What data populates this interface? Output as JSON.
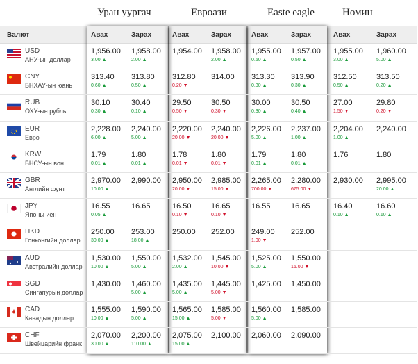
{
  "banks": [
    "Уран уургач",
    "Евроази",
    "Easte eagle",
    "Номин"
  ],
  "header": {
    "currency": "Валют",
    "buy": "Авах",
    "sell": "Зарах"
  },
  "rows": [
    {
      "code": "USD",
      "name": "АНУ-ын доллар",
      "rates": [
        [
          {
            "value": "1,956.00",
            "change": "3.00",
            "dir": "up"
          },
          {
            "value": "1,958.00",
            "change": "2.00",
            "dir": "up"
          }
        ],
        [
          {
            "value": "1,954.00"
          },
          {
            "value": "1,958.00",
            "change": "2.00",
            "dir": "up"
          }
        ],
        [
          {
            "value": "1,955.00",
            "change": "0.50",
            "dir": "up"
          },
          {
            "value": "1,957.00",
            "change": "0.50",
            "dir": "up"
          }
        ],
        [
          {
            "value": "1,955.00",
            "change": "3.00",
            "dir": "up"
          },
          {
            "value": "1,960.00",
            "change": "5.00",
            "dir": "up"
          }
        ]
      ]
    },
    {
      "code": "CNY",
      "name": "БНХАУ-ын юань",
      "rates": [
        [
          {
            "value": "313.40",
            "change": "0.60",
            "dir": "up"
          },
          {
            "value": "313.80",
            "change": "0.50",
            "dir": "up"
          }
        ],
        [
          {
            "value": "312.80",
            "change": "0.20",
            "dir": "down"
          },
          {
            "value": "314.00"
          }
        ],
        [
          {
            "value": "313.30",
            "change": "0.30",
            "dir": "up"
          },
          {
            "value": "313.90",
            "change": "0.30",
            "dir": "up"
          }
        ],
        [
          {
            "value": "312.50",
            "change": "0.50",
            "dir": "up"
          },
          {
            "value": "313.50",
            "change": "0.20",
            "dir": "up"
          }
        ]
      ]
    },
    {
      "code": "RUB",
      "name": "ОХУ-ын рубль",
      "rates": [
        [
          {
            "value": "30.10",
            "change": "0.30",
            "dir": "up"
          },
          {
            "value": "30.40",
            "change": "0.10",
            "dir": "up"
          }
        ],
        [
          {
            "value": "29.50",
            "change": "0.50",
            "dir": "down"
          },
          {
            "value": "30.50",
            "change": "0.30",
            "dir": "down"
          }
        ],
        [
          {
            "value": "30.00",
            "change": "0.30",
            "dir": "up"
          },
          {
            "value": "30.50",
            "change": "0.40",
            "dir": "up"
          }
        ],
        [
          {
            "value": "27.00",
            "change": "1.50",
            "dir": "down"
          },
          {
            "value": "29.80",
            "change": "0.20",
            "dir": "down"
          }
        ]
      ]
    },
    {
      "code": "EUR",
      "name": "Евро",
      "rates": [
        [
          {
            "value": "2,228.00",
            "change": "6.00",
            "dir": "up"
          },
          {
            "value": "2,240.00",
            "change": "5.00",
            "dir": "up"
          }
        ],
        [
          {
            "value": "2,220.00",
            "change": "20.00",
            "dir": "down"
          },
          {
            "value": "2,240.00",
            "change": "20.00",
            "dir": "down"
          }
        ],
        [
          {
            "value": "2,226.00",
            "change": "5.00",
            "dir": "up"
          },
          {
            "value": "2,237.00",
            "change": "1.00",
            "dir": "up"
          }
        ],
        [
          {
            "value": "2,204.00",
            "change": "1.00",
            "dir": "up"
          },
          {
            "value": "2,240.00"
          }
        ]
      ]
    },
    {
      "code": "KRW",
      "name": "БНСУ-ын вон",
      "rates": [
        [
          {
            "value": "1.79",
            "change": "0.01",
            "dir": "up"
          },
          {
            "value": "1.80",
            "change": "0.01",
            "dir": "up"
          }
        ],
        [
          {
            "value": "1.78",
            "change": "0.01",
            "dir": "down"
          },
          {
            "value": "1.80",
            "change": "0.01",
            "dir": "down"
          }
        ],
        [
          {
            "value": "1.79",
            "change": "0.01",
            "dir": "up"
          },
          {
            "value": "1.80",
            "change": "0.01",
            "dir": "up"
          }
        ],
        [
          {
            "value": "1.76"
          },
          {
            "value": "1.80"
          }
        ]
      ]
    },
    {
      "code": "GBR",
      "name": "Английн фунт",
      "rates": [
        [
          {
            "value": "2,970.00",
            "change": "10.00",
            "dir": "up"
          },
          {
            "value": "2,990.00"
          }
        ],
        [
          {
            "value": "2,950.00",
            "change": "20.00",
            "dir": "down"
          },
          {
            "value": "2,985.00",
            "change": "15.00",
            "dir": "down"
          }
        ],
        [
          {
            "value": "2,265.00",
            "change": "700.00",
            "dir": "down"
          },
          {
            "value": "2,280.00",
            "change": "675.00",
            "dir": "down"
          }
        ],
        [
          {
            "value": "2,930.00"
          },
          {
            "value": "2,995.00",
            "change": "20.00",
            "dir": "up"
          }
        ]
      ]
    },
    {
      "code": "JPY",
      "name": "Японы иен",
      "rates": [
        [
          {
            "value": "16.55",
            "change": "0.05",
            "dir": "up"
          },
          {
            "value": "16.65"
          }
        ],
        [
          {
            "value": "16.50",
            "change": "0.10",
            "dir": "down"
          },
          {
            "value": "16.65",
            "change": "0.10",
            "dir": "down"
          }
        ],
        [
          {
            "value": "16.55"
          },
          {
            "value": "16.65"
          }
        ],
        [
          {
            "value": "16.40",
            "change": "0.10",
            "dir": "up"
          },
          {
            "value": "16.60",
            "change": "0.10",
            "dir": "up"
          }
        ]
      ]
    },
    {
      "code": "HKD",
      "name": "Гонконгийн доллар",
      "rates": [
        [
          {
            "value": "250.00",
            "change": "30.00",
            "dir": "up"
          },
          {
            "value": "253.00",
            "change": "18.00",
            "dir": "up"
          }
        ],
        [
          {
            "value": "250.00"
          },
          {
            "value": "252.00"
          }
        ],
        [
          {
            "value": "249.00",
            "change": "1.00",
            "dir": "down"
          },
          {
            "value": "252.00"
          }
        ],
        [
          null,
          null
        ]
      ]
    },
    {
      "code": "AUD",
      "name": "Австралийн доллар",
      "rates": [
        [
          {
            "value": "1,530.00",
            "change": "10.00",
            "dir": "up"
          },
          {
            "value": "1,550.00",
            "change": "5.00",
            "dir": "up"
          }
        ],
        [
          {
            "value": "1,532.00",
            "change": "2.00",
            "dir": "up"
          },
          {
            "value": "1,545.00",
            "change": "10.00",
            "dir": "down"
          }
        ],
        [
          {
            "value": "1,525.00",
            "change": "5.00",
            "dir": "up"
          },
          {
            "value": "1,550.00",
            "change": "15.00",
            "dir": "down"
          }
        ],
        [
          null,
          null
        ]
      ]
    },
    {
      "code": "SGD",
      "name": "Сингапурын доллар",
      "rates": [
        [
          {
            "value": "1,430.00"
          },
          {
            "value": "1,460.00",
            "change": "5.00",
            "dir": "up"
          }
        ],
        [
          {
            "value": "1,435.00",
            "change": "5.00",
            "dir": "up"
          },
          {
            "value": "1,445.00",
            "change": "5.00",
            "dir": "down"
          }
        ],
        [
          {
            "value": "1,425.00"
          },
          {
            "value": "1,450.00"
          }
        ],
        [
          null,
          null
        ]
      ]
    },
    {
      "code": "CAD",
      "name": "Канадын доллар",
      "rates": [
        [
          {
            "value": "1,555.00",
            "change": "10.00",
            "dir": "up"
          },
          {
            "value": "1,590.00",
            "change": "5.00",
            "dir": "up"
          }
        ],
        [
          {
            "value": "1,565.00",
            "change": "15.00",
            "dir": "up"
          },
          {
            "value": "1,585.00",
            "change": "5.00",
            "dir": "down"
          }
        ],
        [
          {
            "value": "1,560.00",
            "change": "5.00",
            "dir": "up"
          },
          {
            "value": "1,585.00"
          }
        ],
        [
          null,
          null
        ]
      ]
    },
    {
      "code": "CHF",
      "name": "Швейцарийн франк",
      "rates": [
        [
          {
            "value": "2,070.00",
            "change": "30.00",
            "dir": "up"
          },
          {
            "value": "2,200.00",
            "change": "110.00",
            "dir": "up"
          }
        ],
        [
          {
            "value": "2,075.00",
            "change": "15.00",
            "dir": "up"
          },
          {
            "value": "2,100.00"
          }
        ],
        [
          {
            "value": "2,060.00"
          },
          {
            "value": "2,090.00"
          }
        ],
        [
          null,
          null
        ]
      ]
    }
  ]
}
